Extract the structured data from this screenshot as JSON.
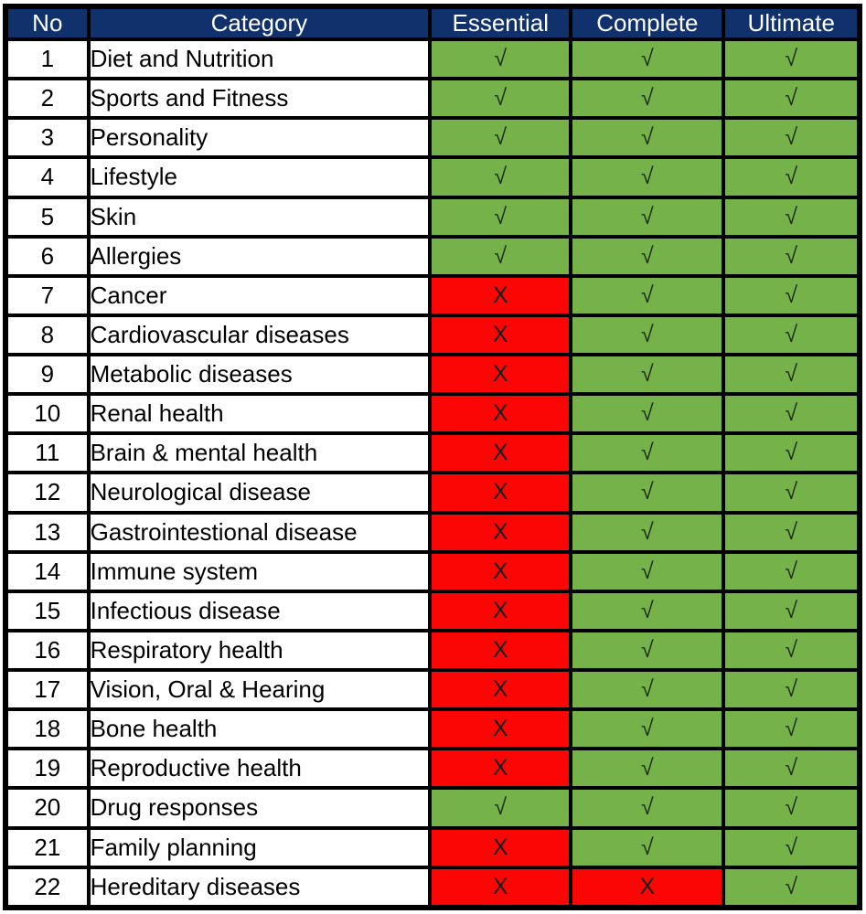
{
  "marks": {
    "yes": "√",
    "no": "X"
  },
  "colors": {
    "header_bg": "#10316B",
    "header_text": "#FFFFFF",
    "yes_bg": "#76B24A",
    "no_bg": "#FB0505",
    "row_bg": "#FFFFFF",
    "grid": "#000000",
    "body_text": "#000000",
    "check_mark": "#1C2B12",
    "cross_mark": "#1A1A1A"
  },
  "chart_data": {
    "type": "table",
    "columns": [
      "No",
      "Category",
      "Essential",
      "Complete",
      "Ultimate"
    ],
    "rows": [
      {
        "no": "1",
        "category": "Diet and Nutrition",
        "essential": "yes",
        "complete": "yes",
        "ultimate": "yes"
      },
      {
        "no": "2",
        "category": "Sports and Fitness",
        "essential": "yes",
        "complete": "yes",
        "ultimate": "yes"
      },
      {
        "no": "3",
        "category": "Personality",
        "essential": "yes",
        "complete": "yes",
        "ultimate": "yes"
      },
      {
        "no": "4",
        "category": "Lifestyle",
        "essential": "yes",
        "complete": "yes",
        "ultimate": "yes"
      },
      {
        "no": "5",
        "category": "Skin",
        "essential": "yes",
        "complete": "yes",
        "ultimate": "yes"
      },
      {
        "no": "6",
        "category": "Allergies",
        "essential": "yes",
        "complete": "yes",
        "ultimate": "yes"
      },
      {
        "no": "7",
        "category": "Cancer",
        "essential": "no",
        "complete": "yes",
        "ultimate": "yes"
      },
      {
        "no": "8",
        "category": "Cardiovascular diseases",
        "essential": "no",
        "complete": "yes",
        "ultimate": "yes"
      },
      {
        "no": "9",
        "category": "Metabolic diseases",
        "essential": "no",
        "complete": "yes",
        "ultimate": "yes"
      },
      {
        "no": "10",
        "category": "Renal health",
        "essential": "no",
        "complete": "yes",
        "ultimate": "yes"
      },
      {
        "no": "11",
        "category": "Brain & mental health",
        "essential": "no",
        "complete": "yes",
        "ultimate": "yes"
      },
      {
        "no": "12",
        "category": "Neurological disease",
        "essential": "no",
        "complete": "yes",
        "ultimate": "yes"
      },
      {
        "no": "13",
        "category": "Gastrointestional disease",
        "essential": "no",
        "complete": "yes",
        "ultimate": "yes"
      },
      {
        "no": "14",
        "category": "Immune system",
        "essential": "no",
        "complete": "yes",
        "ultimate": "yes"
      },
      {
        "no": "15",
        "category": "Infectious disease",
        "essential": "no",
        "complete": "yes",
        "ultimate": "yes"
      },
      {
        "no": "16",
        "category": "Respiratory health",
        "essential": "no",
        "complete": "yes",
        "ultimate": "yes"
      },
      {
        "no": "17",
        "category": "Vision, Oral & Hearing",
        "essential": "no",
        "complete": "yes",
        "ultimate": "yes"
      },
      {
        "no": "18",
        "category": "Bone health",
        "essential": "no",
        "complete": "yes",
        "ultimate": "yes"
      },
      {
        "no": "19",
        "category": "Reproductive health",
        "essential": "no",
        "complete": "yes",
        "ultimate": "yes"
      },
      {
        "no": "20",
        "category": "Drug responses",
        "essential": "yes",
        "complete": "yes",
        "ultimate": "yes"
      },
      {
        "no": "21",
        "category": "Family planning",
        "essential": "no",
        "complete": "yes",
        "ultimate": "yes"
      },
      {
        "no": "22",
        "category": "Hereditary diseases",
        "essential": "no",
        "complete": "no",
        "ultimate": "yes"
      }
    ]
  }
}
